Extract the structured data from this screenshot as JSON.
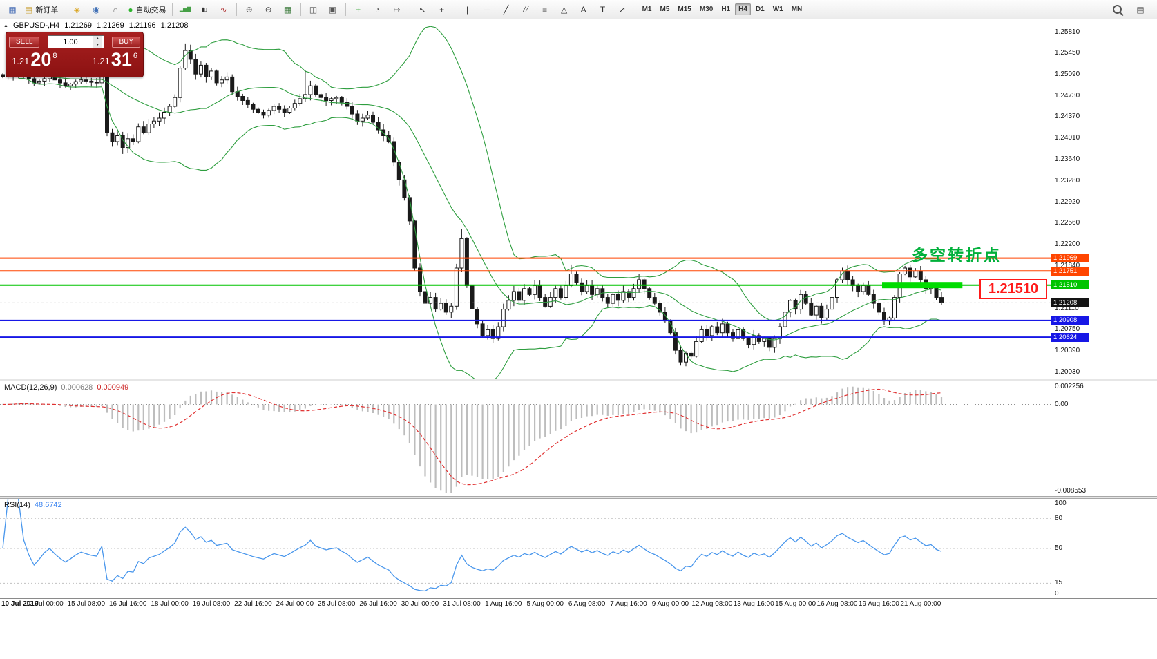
{
  "toolbar": {
    "groups": [
      {
        "items": [
          {
            "name": "chart-window-icon",
            "glyph": "▦",
            "color": "#4f74b8"
          },
          {
            "name": "new-order-button",
            "icon_name": "new-order-icon",
            "glyph": "▤",
            "color": "#caa23a",
            "label": "新订单"
          }
        ]
      },
      {
        "items": [
          {
            "name": "compass-icon",
            "glyph": "◈",
            "color": "#d9a31c"
          },
          {
            "name": "profiles-icon",
            "glyph": "◉",
            "color": "#3f6fb5"
          },
          {
            "name": "headset-icon",
            "glyph": "∩",
            "color": "#6b6b6b"
          },
          {
            "name": "autotrading-button",
            "icon_name": "autotrading-icon",
            "glyph": "●",
            "color": "#2db52d",
            "label": "自动交易"
          }
        ]
      },
      {
        "items": [
          {
            "name": "bar-chart-icon",
            "glyph": "▂▅▇",
            "color": "#46a046",
            "small": true
          },
          {
            "name": "candlestick-chart-icon",
            "glyph": "▮▯",
            "color": "#333333",
            "small": true
          },
          {
            "name": "line-chart-icon",
            "glyph": "∿",
            "color": "#b03030"
          }
        ]
      },
      {
        "items": [
          {
            "name": "zoom-in-icon",
            "glyph": "⊕",
            "color": "#444444"
          },
          {
            "name": "zoom-out-icon",
            "glyph": "⊖",
            "color": "#444444"
          },
          {
            "name": "tile-windows-icon",
            "glyph": "▦",
            "color": "#3b7a3b"
          }
        ]
      },
      {
        "items": [
          {
            "name": "tile-horizontal-icon",
            "glyph": "◫",
            "color": "#555555"
          },
          {
            "name": "cascade-icon",
            "glyph": "▣",
            "color": "#555555"
          }
        ]
      },
      {
        "items": [
          {
            "name": "indicators-icon",
            "glyph": "+",
            "color": "#1e9e1e"
          },
          {
            "name": "periods-icon",
            "glyph": "◔",
            "color": "#555555"
          },
          {
            "name": "chart-shift-icon",
            "glyph": "↦",
            "color": "#555555"
          }
        ]
      },
      {
        "items": [
          {
            "name": "cursor-icon",
            "glyph": "↖",
            "color": "#333333"
          },
          {
            "name": "crosshair-icon",
            "glyph": "+",
            "color": "#333333"
          }
        ]
      },
      {
        "items": [
          {
            "name": "vertical-line-icon",
            "glyph": "|",
            "color": "#333333"
          },
          {
            "name": "horizontal-line-icon",
            "glyph": "─",
            "color": "#333333"
          },
          {
            "name": "trendline-icon",
            "glyph": "╱",
            "color": "#333333"
          },
          {
            "name": "channel-icon",
            "glyph": "╱╱",
            "color": "#333333",
            "small": true
          },
          {
            "name": "fibonacci-icon",
            "glyph": "≡",
            "color": "#333333"
          },
          {
            "name": "shapes-icon",
            "glyph": "△",
            "color": "#333333"
          },
          {
            "name": "text-icon",
            "glyph": "A",
            "color": "#333333"
          },
          {
            "name": "text-label-icon",
            "glyph": "T",
            "color": "#333333"
          },
          {
            "name": "arrows-icon",
            "glyph": "↗",
            "color": "#333333"
          }
        ]
      }
    ],
    "timeframes": {
      "items": [
        "M1",
        "M5",
        "M15",
        "M30",
        "H1",
        "H4",
        "D1",
        "W1",
        "MN"
      ],
      "active": "H4"
    },
    "right_icons": [
      {
        "name": "search-icon",
        "glyph": "css-magnifier"
      },
      {
        "name": "chart-list-icon",
        "glyph": "▤",
        "color": "#555555"
      }
    ]
  },
  "chart": {
    "symbol_line": {
      "collapse_glyph": "▲",
      "symbol": "GBPUSD-,H4",
      "open": "1.21269",
      "high": "1.21269",
      "low": "1.21196",
      "close": "1.21208"
    },
    "trade_panel": {
      "sell_label": "SELL",
      "buy_label": "BUY",
      "volume": "1.00",
      "sell_price": {
        "base": "1.21",
        "big": "20",
        "sup": "8"
      },
      "buy_price": {
        "base": "1.21",
        "big": "31",
        "sup": "6"
      }
    },
    "annotations": {
      "turning_point_text": "多空转折点",
      "price_callout": "1.21510",
      "highlight": {
        "price": 1.2151,
        "from_index": 169,
        "to_index": 184,
        "color": "#00dc00"
      }
    }
  },
  "chart_data": {
    "type": "candlestick",
    "symbol": "GBPUSD-",
    "timeframe": "H4",
    "y_range": [
      1.1992,
      1.2603
    ],
    "y_tick_labels": [
      "1.25810",
      "1.25450",
      "1.25090",
      "1.24730",
      "1.24370",
      "1.24010",
      "1.23640",
      "1.23280",
      "1.22920",
      "1.22560",
      "1.22200",
      "1.21840",
      "1.21480",
      "1.21110",
      "1.20750",
      "1.20390",
      "1.20030"
    ],
    "x_tick_labels": [
      "10 Jul 2019",
      "12 Jul 00:00",
      "15 Jul 08:00",
      "16 Jul 16:00",
      "18 Jul 00:00",
      "19 Jul 08:00",
      "22 Jul 16:00",
      "24 Jul 00:00",
      "25 Jul 08:00",
      "26 Jul 16:00",
      "30 Jul 00:00",
      "31 Jul 08:00",
      "1 Aug 16:00",
      "5 Aug 00:00",
      "6 Aug 08:00",
      "7 Aug 16:00",
      "9 Aug 00:00",
      "12 Aug 08:00",
      "13 Aug 16:00",
      "15 Aug 00:00",
      "16 Aug 08:00",
      "19 Aug 16:00",
      "21 Aug 00:00"
    ],
    "x_tick_every": 8,
    "closes": [
      1.2505,
      1.2508,
      1.2512,
      1.2515,
      1.2508,
      1.2502,
      1.2495,
      1.2498,
      1.2502,
      1.2505,
      1.25,
      1.2495,
      1.249,
      1.2493,
      1.2497,
      1.25,
      1.2498,
      1.2496,
      1.2495,
      1.2505,
      1.241,
      1.2395,
      1.2405,
      1.2385,
      1.24,
      1.2395,
      1.242,
      1.241,
      1.2425,
      1.243,
      1.2435,
      1.2445,
      1.2455,
      1.247,
      1.252,
      1.255,
      1.2535,
      1.251,
      1.2525,
      1.2505,
      1.2515,
      1.2495,
      1.25,
      1.2505,
      1.248,
      1.2472,
      1.2465,
      1.2458,
      1.245,
      1.2445,
      1.244,
      1.2448,
      1.2455,
      1.245,
      1.2445,
      1.2452,
      1.246,
      1.2468,
      1.2475,
      1.249,
      1.2475,
      1.247,
      1.2465,
      1.2468,
      1.247,
      1.2462,
      1.2455,
      1.2442,
      1.243,
      1.2435,
      1.244,
      1.2428,
      1.2415,
      1.2405,
      1.2395,
      1.236,
      1.233,
      1.23,
      1.226,
      1.218,
      1.214,
      1.212,
      1.213,
      1.211,
      1.212,
      1.2105,
      1.2115,
      1.218,
      1.223,
      1.215,
      1.211,
      1.2085,
      1.2065,
      1.2075,
      1.206,
      1.208,
      1.211,
      1.2125,
      1.214,
      1.2125,
      1.2145,
      1.2135,
      1.215,
      1.213,
      1.2115,
      1.213,
      1.2145,
      1.213,
      1.215,
      1.217,
      1.2155,
      1.214,
      1.215,
      1.2135,
      1.2145,
      1.213,
      1.212,
      1.2135,
      1.2125,
      1.214,
      1.213,
      1.2145,
      1.216,
      1.2145,
      1.213,
      1.212,
      1.2105,
      1.209,
      1.207,
      1.204,
      1.202,
      1.2035,
      1.203,
      1.2055,
      1.2075,
      1.2065,
      1.208,
      1.207,
      1.2085,
      1.207,
      1.206,
      1.2075,
      1.206,
      1.205,
      1.2065,
      1.2055,
      1.206,
      1.2045,
      1.206,
      1.208,
      1.2105,
      1.2125,
      1.211,
      1.2135,
      1.212,
      1.21,
      1.2115,
      1.2095,
      1.211,
      1.213,
      1.216,
      1.2175,
      1.216,
      1.215,
      1.214,
      1.215,
      1.2135,
      1.212,
      1.2105,
      1.209,
      1.2095,
      1.213,
      1.217,
      1.218,
      1.2165,
      1.2175,
      1.216,
      1.2145,
      1.215,
      1.213,
      1.2121
    ],
    "extremes": {
      "23": {
        "l": 1.2374
      },
      "35": {
        "h": 1.2562
      },
      "58": {
        "h": 1.2516
      },
      "88": {
        "h": 1.2246
      },
      "109": {
        "h": 1.2186
      },
      "130": {
        "l": 1.2014
      }
    },
    "overlays": {
      "bollinger": {
        "period": 20,
        "deviation": 2,
        "color": "#2e9e3f"
      }
    },
    "horizontal_lines": [
      {
        "price": 1.21969,
        "label": "1.21969",
        "color": "#ff4500"
      },
      {
        "price": 1.21751,
        "label": "1.21751",
        "color": "#ff4500"
      },
      {
        "price": 1.2151,
        "label": "1.21510",
        "color": "#00c400"
      },
      {
        "price": 1.20908,
        "label": "1.20908",
        "color": "#1717e6"
      },
      {
        "price": 1.20624,
        "label": "1.20624",
        "color": "#1717e6"
      }
    ],
    "bid": {
      "price": 1.21208,
      "label": "1.21208",
      "color": "#141414"
    },
    "indicators": [
      {
        "type": "macd",
        "name": "MACD(12,26,9)",
        "fast": 12,
        "slow": 26,
        "signal": 9,
        "value_main": "0.000628",
        "value_signal": "0.000949",
        "scale": {
          "max": "0.002256",
          "zero": "0.00",
          "min": "-0.008553"
        }
      },
      {
        "type": "rsi",
        "name": "RSI(14)",
        "period": 14,
        "value": "48.6742",
        "levels": [
          80,
          50,
          15
        ],
        "scale_top": "100",
        "scale_bottom": "0"
      }
    ]
  }
}
